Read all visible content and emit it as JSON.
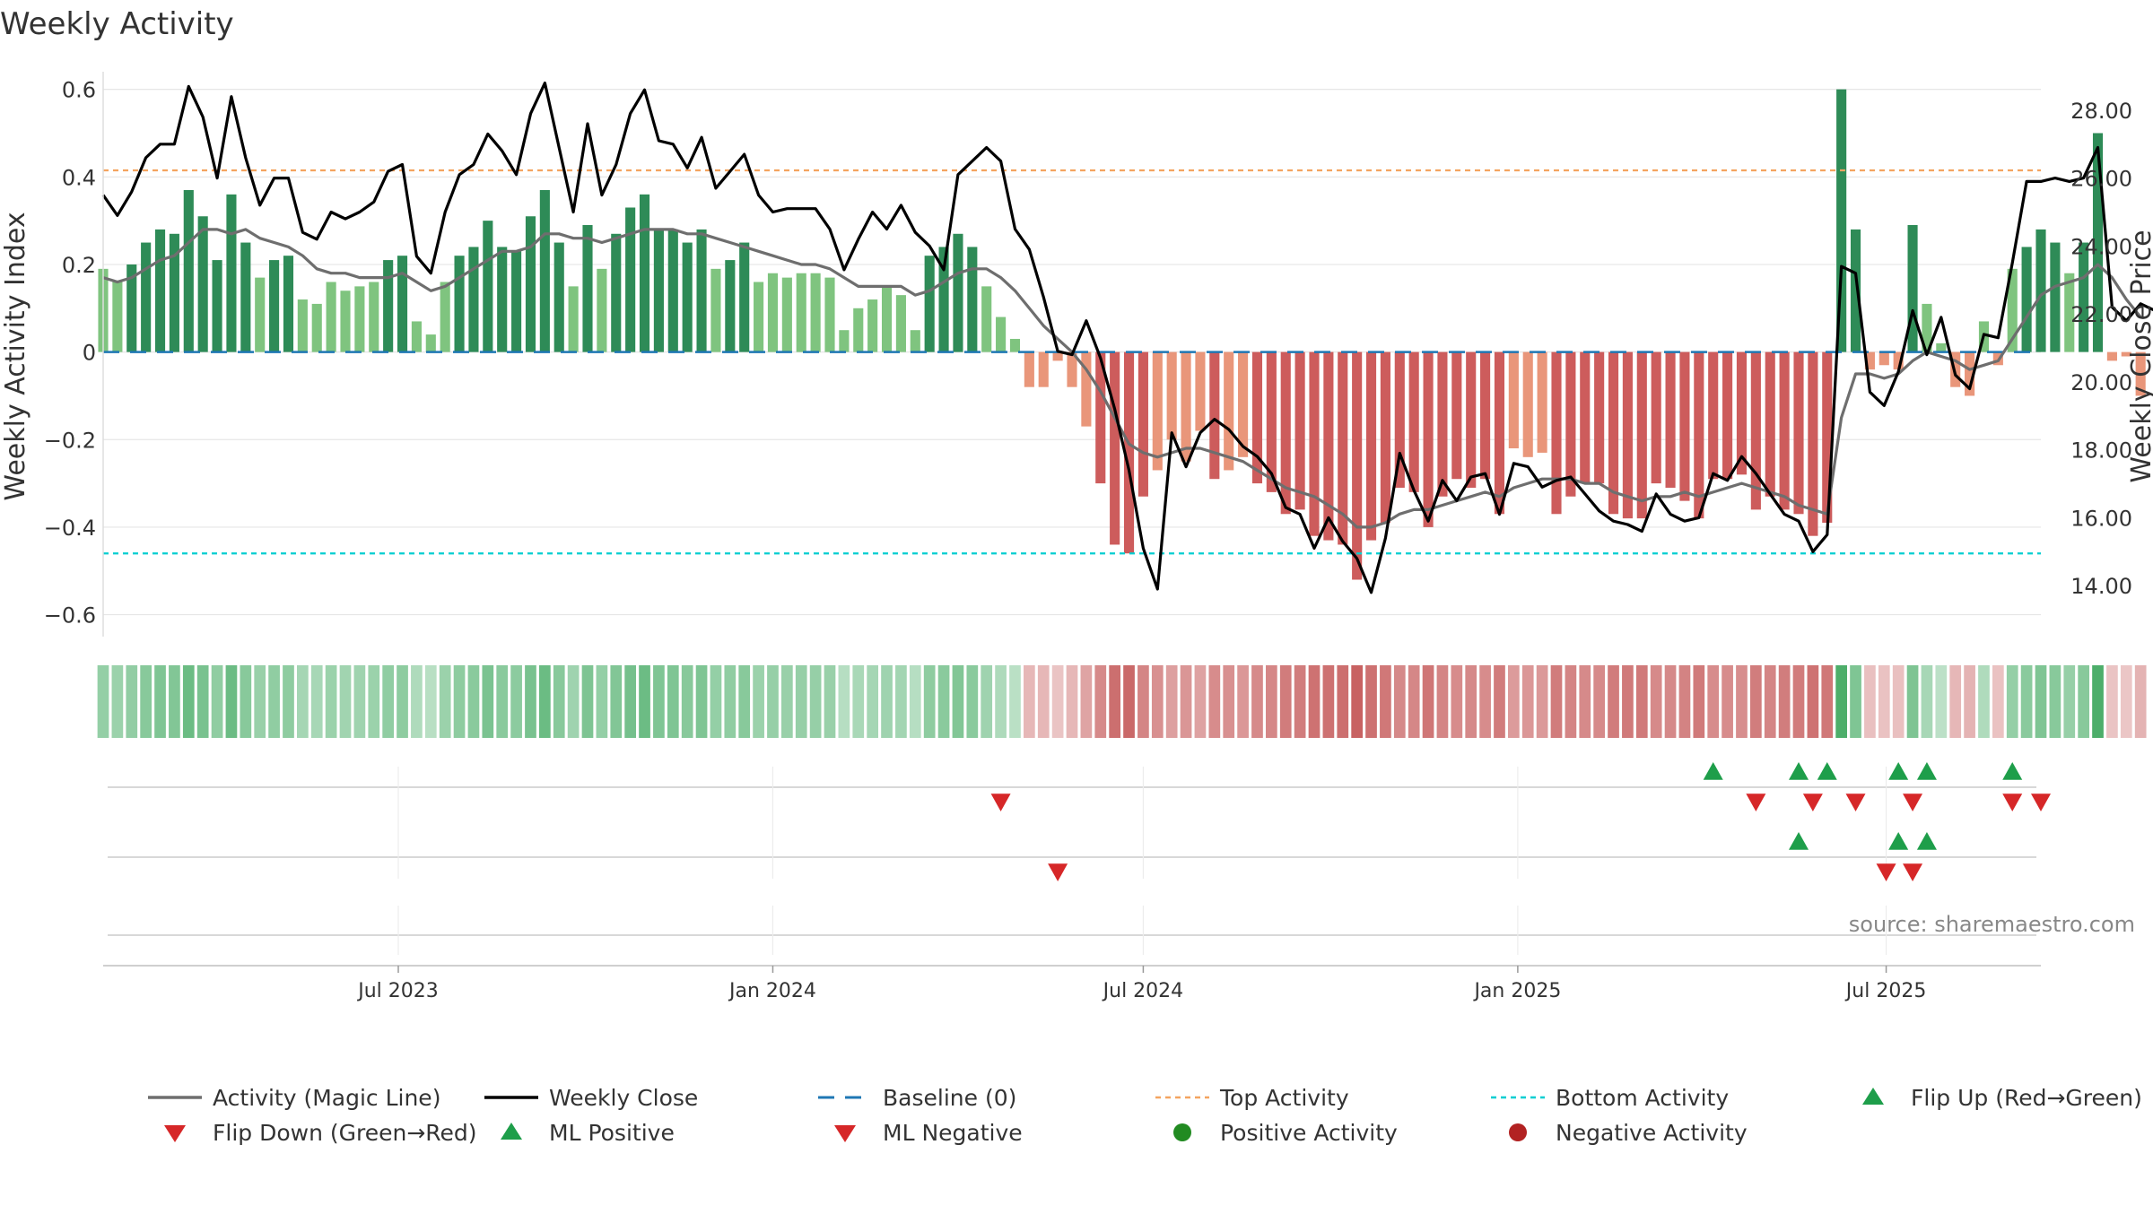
{
  "chart_data": {
    "type": "bar",
    "title": "Weekly Activity",
    "source": "source: sharemaestro.com",
    "y_left": {
      "label": "Weekly Activity Index",
      "range": [
        -0.65,
        0.63
      ],
      "ticks": [
        0.6,
        0.4,
        0.2,
        0,
        -0.2,
        -0.4,
        -0.6
      ],
      "tick_labels": [
        "0.6",
        "0.4",
        "0.2",
        "0",
        "−0.2",
        "−0.4",
        "−0.6"
      ]
    },
    "y_right": {
      "label": "Weekly Close Price",
      "range": [
        12.5,
        29.0
      ],
      "ticks": [
        28,
        26,
        24,
        22,
        20,
        18,
        16,
        14
      ],
      "tick_labels": [
        "28.00",
        "26.00",
        "24.00",
        "22.00",
        "20.00",
        "18.00",
        "16.00",
        "14.00"
      ]
    },
    "x_axis": {
      "range": [
        "2023-02-06",
        "2025-09-15"
      ],
      "ticks": [
        "2023-07-01",
        "2024-01-01",
        "2024-07-01",
        "2025-01-01",
        "2025-07-01"
      ],
      "tick_labels": [
        "Jul 2023",
        "Jan 2024",
        "Jul 2024",
        "Jan 2025",
        "Jul 2025"
      ]
    },
    "reference_lines": {
      "baseline": 0,
      "top_activity": 0.415,
      "bottom_activity": -0.46
    },
    "colors": {
      "pos_dark": "#2e8b57",
      "pos_light": "#7fc47f",
      "neg_dark": "#cd5c5c",
      "neg_light": "#e9967a",
      "magic_line": "#6e6e6e",
      "close_line": "#000000",
      "baseline": "#1f77b4",
      "top": "#f4a460",
      "bottom": "#00ced1",
      "flip_up": "#1e9e4a",
      "flip_down": "#d62728",
      "grid": "#e6e6e6"
    },
    "weeks": {
      "start": "2023-02-06",
      "count": 142,
      "step_days": 7
    },
    "activity": [
      0.19,
      0.16,
      0.2,
      0.25,
      0.28,
      0.27,
      0.37,
      0.31,
      0.21,
      0.36,
      0.25,
      0.17,
      0.21,
      0.22,
      0.12,
      0.11,
      0.16,
      0.14,
      0.15,
      0.16,
      0.21,
      0.22,
      0.07,
      0.04,
      0.16,
      0.22,
      0.24,
      0.3,
      0.24,
      0.23,
      0.31,
      0.37,
      0.25,
      0.15,
      0.29,
      0.19,
      0.27,
      0.33,
      0.36,
      0.28,
      0.28,
      0.25,
      0.28,
      0.19,
      0.21,
      0.25,
      0.16,
      0.18,
      0.17,
      0.18,
      0.18,
      0.17,
      0.05,
      0.1,
      0.12,
      0.15,
      0.13,
      0.05,
      0.22,
      0.24,
      0.27,
      0.24,
      0.15,
      0.08,
      0.03,
      -0.08,
      -0.08,
      -0.02,
      -0.08,
      -0.17,
      -0.3,
      -0.44,
      -0.46,
      -0.33,
      -0.27,
      -0.2,
      -0.25,
      -0.18,
      -0.29,
      -0.27,
      -0.24,
      -0.3,
      -0.32,
      -0.37,
      -0.36,
      -0.42,
      -0.43,
      -0.44,
      -0.52,
      -0.43,
      -0.39,
      -0.31,
      -0.32,
      -0.4,
      -0.33,
      -0.29,
      -0.31,
      -0.29,
      -0.37,
      -0.22,
      -0.24,
      -0.23,
      -0.37,
      -0.33,
      -0.3,
      -0.3,
      -0.37,
      -0.38,
      -0.38,
      -0.3,
      -0.31,
      -0.34,
      -0.38,
      -0.29,
      -0.29,
      -0.28,
      -0.36,
      -0.33,
      -0.36,
      -0.37,
      -0.42,
      -0.39,
      0.6,
      0.28,
      -0.04,
      -0.03,
      -0.04,
      0.29,
      0.11,
      0.02,
      -0.08,
      -0.1,
      0.07,
      -0.03,
      0.19,
      0.24,
      0.28,
      0.25,
      0.18,
      0.25,
      0.5,
      -0.02,
      -0.01,
      -0.1
    ],
    "magic_line": [
      0.17,
      0.16,
      0.17,
      0.19,
      0.21,
      0.22,
      0.25,
      0.28,
      0.28,
      0.27,
      0.28,
      0.26,
      0.25,
      0.24,
      0.22,
      0.19,
      0.18,
      0.18,
      0.17,
      0.17,
      0.17,
      0.18,
      0.16,
      0.14,
      0.15,
      0.17,
      0.19,
      0.21,
      0.23,
      0.23,
      0.24,
      0.27,
      0.27,
      0.26,
      0.26,
      0.25,
      0.26,
      0.27,
      0.28,
      0.28,
      0.28,
      0.27,
      0.27,
      0.26,
      0.25,
      0.24,
      0.23,
      0.22,
      0.21,
      0.2,
      0.2,
      0.19,
      0.17,
      0.15,
      0.15,
      0.15,
      0.15,
      0.13,
      0.14,
      0.16,
      0.18,
      0.19,
      0.19,
      0.17,
      0.14,
      0.1,
      0.06,
      0.03,
      0.0,
      -0.04,
      -0.09,
      -0.15,
      -0.21,
      -0.23,
      -0.24,
      -0.23,
      -0.22,
      -0.22,
      -0.23,
      -0.24,
      -0.25,
      -0.27,
      -0.29,
      -0.31,
      -0.32,
      -0.33,
      -0.35,
      -0.37,
      -0.4,
      -0.4,
      -0.39,
      -0.37,
      -0.36,
      -0.36,
      -0.35,
      -0.34,
      -0.33,
      -0.32,
      -0.33,
      -0.31,
      -0.3,
      -0.29,
      -0.29,
      -0.29,
      -0.3,
      -0.3,
      -0.32,
      -0.33,
      -0.34,
      -0.33,
      -0.33,
      -0.32,
      -0.33,
      -0.32,
      -0.31,
      -0.3,
      -0.31,
      -0.32,
      -0.33,
      -0.35,
      -0.36,
      -0.37,
      -0.15,
      -0.05,
      -0.05,
      -0.06,
      -0.05,
      -0.02,
      0.0,
      -0.01,
      -0.02,
      -0.04,
      -0.03,
      -0.02,
      0.03,
      0.08,
      0.13,
      0.15,
      0.16,
      0.17,
      0.2,
      0.17,
      0.12,
      0.08
    ],
    "weekly_close": [
      25.5,
      24.9,
      25.6,
      26.6,
      27.0,
      27.0,
      28.7,
      27.8,
      26.0,
      28.4,
      26.6,
      25.2,
      26.0,
      26.0,
      24.4,
      24.2,
      25.0,
      24.8,
      25.0,
      25.3,
      26.2,
      26.4,
      23.7,
      23.2,
      25.0,
      26.1,
      26.4,
      27.3,
      26.8,
      26.1,
      27.9,
      28.8,
      26.9,
      25.0,
      27.6,
      25.5,
      26.4,
      27.9,
      28.6,
      27.1,
      27.0,
      26.3,
      27.2,
      25.7,
      26.2,
      26.7,
      25.5,
      25.0,
      25.1,
      25.1,
      25.1,
      24.5,
      23.3,
      24.2,
      25.0,
      24.5,
      25.2,
      24.4,
      24.0,
      23.3,
      26.1,
      26.5,
      26.9,
      26.5,
      24.5,
      23.9,
      22.5,
      20.9,
      20.8,
      21.8,
      20.7,
      19.2,
      17.4,
      15.1,
      13.9,
      18.5,
      17.5,
      18.5,
      18.9,
      18.6,
      18.1,
      17.8,
      17.3,
      16.3,
      16.1,
      15.1,
      16.0,
      15.3,
      14.8,
      13.8,
      15.4,
      17.9,
      16.8,
      15.9,
      17.1,
      16.5,
      17.2,
      17.3,
      16.1,
      17.6,
      17.5,
      16.9,
      17.1,
      17.2,
      16.7,
      16.2,
      15.9,
      15.8,
      15.6,
      16.7,
      16.1,
      15.9,
      16.0,
      17.3,
      17.1,
      17.8,
      17.3,
      16.7,
      16.1,
      15.9,
      15.0,
      15.5,
      23.4,
      23.2,
      19.7,
      19.3,
      20.3,
      22.1,
      20.8,
      21.9,
      20.2,
      19.8,
      21.4,
      21.3,
      23.5,
      25.9,
      25.9,
      26.0,
      25.9,
      26.0,
      26.9,
      22.2,
      21.8,
      22.3,
      22.1,
      21.5
    ],
    "state_strip": {
      "note": "per-week shade level 0-4 (0 lightest, 4 darkest) with sign from activity"
    },
    "markers": {
      "flip_up": [
        "2025-04-07",
        "2025-05-19",
        "2025-06-02",
        "2025-07-07",
        "2025-07-21",
        "2025-09-01"
      ],
      "flip_down": [
        "2024-04-22",
        "2025-04-28",
        "2025-05-26",
        "2025-06-16",
        "2025-07-14",
        "2025-09-01",
        "2025-09-15"
      ],
      "ml_positive": [
        "2025-05-19",
        "2025-07-07",
        "2025-07-21"
      ],
      "ml_negative": [
        "2024-05-20",
        "2025-07-01",
        "2025-07-14"
      ],
      "positive_activity": [],
      "negative_activity": []
    },
    "legend": {
      "placement": "bottom",
      "items": [
        {
          "key": "magic",
          "label": "Activity (Magic Line)"
        },
        {
          "key": "close",
          "label": "Weekly Close"
        },
        {
          "key": "baseline",
          "label": "Baseline (0)"
        },
        {
          "key": "top",
          "label": "Top Activity"
        },
        {
          "key": "bottom",
          "label": "Bottom Activity"
        },
        {
          "key": "flipup",
          "label": "Flip Up (Red→Green)"
        },
        {
          "key": "flipdown",
          "label": "Flip Down (Green→Red)"
        },
        {
          "key": "mlpos",
          "label": "ML Positive"
        },
        {
          "key": "mlneg",
          "label": "ML Negative"
        },
        {
          "key": "posact",
          "label": "Positive Activity"
        },
        {
          "key": "negact",
          "label": "Negative Activity"
        }
      ]
    }
  }
}
